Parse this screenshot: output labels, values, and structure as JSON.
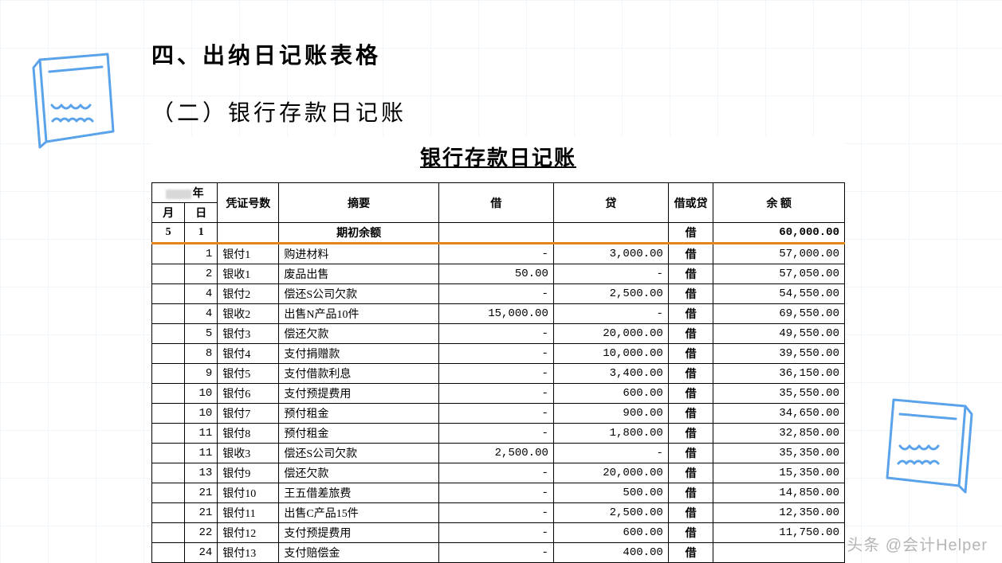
{
  "headings": {
    "h1": "四、出纳日记账表格",
    "h2": "（二）银行存款日记账"
  },
  "ledger": {
    "title": "银行存款日记账",
    "year_suffix": "年",
    "columns": {
      "month": "月",
      "day": "日",
      "voucher": "凭证号数",
      "summary": "摘要",
      "debit": "借",
      "credit": "贷",
      "debit_or_credit": "借或贷",
      "balance": "余 额"
    },
    "opening": {
      "month": "5",
      "day": "1",
      "summary": "期初余额",
      "debit_or_credit": "借",
      "balance": "60,000.00"
    },
    "rows": [
      {
        "month": "",
        "day": "1",
        "voucher": "银付1",
        "summary": "购进材料",
        "debit": "-",
        "credit": "3,000.00",
        "dc": "借",
        "balance": "57,000.00"
      },
      {
        "month": "",
        "day": "2",
        "voucher": "银收1",
        "summary": "废品出售",
        "debit": "50.00",
        "credit": "-",
        "dc": "借",
        "balance": "57,050.00"
      },
      {
        "month": "",
        "day": "4",
        "voucher": "银付2",
        "summary": "偿还S公司欠款",
        "debit": "-",
        "credit": "2,500.00",
        "dc": "借",
        "balance": "54,550.00"
      },
      {
        "month": "",
        "day": "4",
        "voucher": "银收2",
        "summary": "出售N产品10件",
        "debit": "15,000.00",
        "credit": "-",
        "dc": "借",
        "balance": "69,550.00"
      },
      {
        "month": "",
        "day": "5",
        "voucher": "银付3",
        "summary": "偿还欠款",
        "debit": "-",
        "credit": "20,000.00",
        "dc": "借",
        "balance": "49,550.00"
      },
      {
        "month": "",
        "day": "8",
        "voucher": "银付4",
        "summary": "支付捐赠款",
        "debit": "-",
        "credit": "10,000.00",
        "dc": "借",
        "balance": "39,550.00"
      },
      {
        "month": "",
        "day": "9",
        "voucher": "银付5",
        "summary": "支付借款利息",
        "debit": "-",
        "credit": "3,400.00",
        "dc": "借",
        "balance": "36,150.00"
      },
      {
        "month": "",
        "day": "10",
        "voucher": "银付6",
        "summary": "支付预提费用",
        "debit": "-",
        "credit": "600.00",
        "dc": "借",
        "balance": "35,550.00"
      },
      {
        "month": "",
        "day": "10",
        "voucher": "银付7",
        "summary": "预付租金",
        "debit": "-",
        "credit": "900.00",
        "dc": "借",
        "balance": "34,650.00"
      },
      {
        "month": "",
        "day": "11",
        "voucher": "银付8",
        "summary": "预付租金",
        "debit": "-",
        "credit": "1,800.00",
        "dc": "借",
        "balance": "32,850.00"
      },
      {
        "month": "",
        "day": "11",
        "voucher": "银收3",
        "summary": "偿还S公司欠款",
        "debit": "2,500.00",
        "credit": "-",
        "dc": "借",
        "balance": "35,350.00"
      },
      {
        "month": "",
        "day": "13",
        "voucher": "银付9",
        "summary": "偿还欠款",
        "debit": "-",
        "credit": "20,000.00",
        "dc": "借",
        "balance": "15,350.00"
      },
      {
        "month": "",
        "day": "21",
        "voucher": "银付10",
        "summary": "王五借差旅费",
        "debit": "-",
        "credit": "500.00",
        "dc": "借",
        "balance": "14,850.00"
      },
      {
        "month": "",
        "day": "21",
        "voucher": "银付11",
        "summary": "出售C产品15件",
        "debit": "-",
        "credit": "2,500.00",
        "dc": "借",
        "balance": "12,350.00"
      },
      {
        "month": "",
        "day": "22",
        "voucher": "银付12",
        "summary": "支付预提费用",
        "debit": "-",
        "credit": "600.00",
        "dc": "借",
        "balance": "11,750.00"
      },
      {
        "month": "",
        "day": "24",
        "voucher": "银付13",
        "summary": "支付赔偿金",
        "debit": "-",
        "credit": "400.00",
        "dc": "借",
        "balance": ""
      }
    ],
    "colors": {
      "border": "#000000",
      "accent_row_border": "#e2861a",
      "grid_bg": "#f0f5fa",
      "doodle_stroke": "#5aa3ea"
    }
  },
  "watermark": "头条 @会计Helper"
}
